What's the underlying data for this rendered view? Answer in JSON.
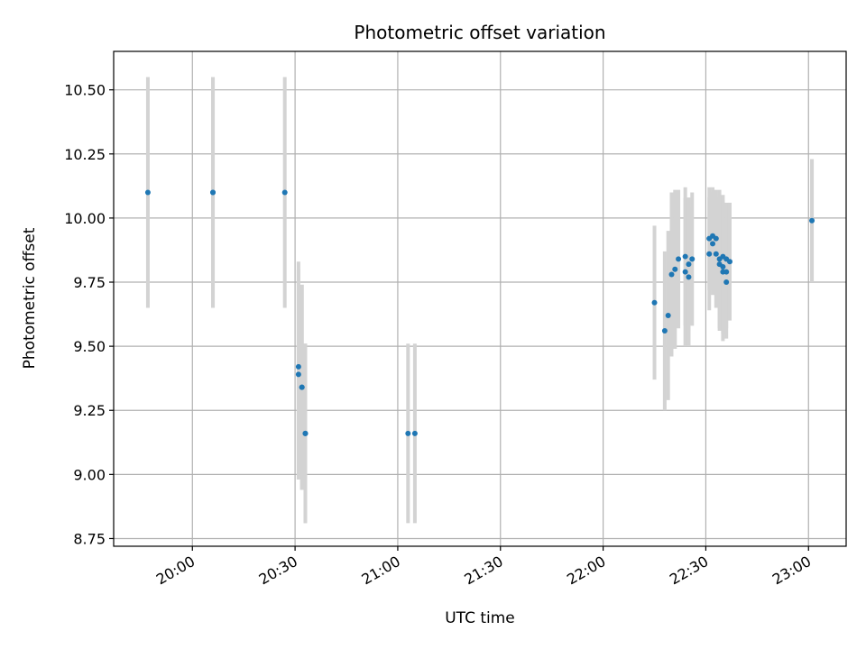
{
  "chart_data": {
    "type": "scatter",
    "title": "Photometric offset variation",
    "xlabel": "UTC time",
    "ylabel": "Photometric offset",
    "grid": true,
    "legend": "none",
    "x_unit": "minutes after 19:00 UTC",
    "xlim": [
      "19:37",
      "23:11"
    ],
    "ylim": [
      8.72,
      10.65
    ],
    "x_ticks": [
      "20:00",
      "20:30",
      "21:00",
      "21:30",
      "22:00",
      "22:30",
      "23:00"
    ],
    "y_ticks": [
      "8.75",
      "9.00",
      "9.25",
      "9.50",
      "9.75",
      "10.00",
      "10.25",
      "10.50"
    ],
    "colors": {
      "point": "#1f77b4",
      "errorbar": "#d3d3d3",
      "grid": "#b0b0b0"
    },
    "series": [
      {
        "points": [
          {
            "t": "19:47",
            "y": 10.1,
            "err": 0.45
          },
          {
            "t": "20:06",
            "y": 10.1,
            "err": 0.45
          },
          {
            "t": "20:06",
            "y": 10.1,
            "err": 0.45
          },
          {
            "t": "20:27",
            "y": 10.1,
            "err": 0.45
          },
          {
            "t": "20:31",
            "y": 9.42,
            "err": 0.41
          },
          {
            "t": "20:31",
            "y": 9.39,
            "err": 0.41
          },
          {
            "t": "20:32",
            "y": 9.34,
            "err": 0.4
          },
          {
            "t": "20:32",
            "y": 9.34,
            "err": 0.4
          },
          {
            "t": "20:33",
            "y": 9.16,
            "err": 0.35
          },
          {
            "t": "20:33",
            "y": 9.16,
            "err": 0.35
          },
          {
            "t": "21:03",
            "y": 9.16,
            "err": 0.35
          },
          {
            "t": "21:05",
            "y": 9.16,
            "err": 0.35
          },
          {
            "t": "22:15",
            "y": 9.67,
            "err": 0.3
          },
          {
            "t": "22:18",
            "y": 9.56,
            "err": 0.31
          },
          {
            "t": "22:19",
            "y": 9.62,
            "err": 0.33
          },
          {
            "t": "22:20",
            "y": 9.78,
            "err": 0.32
          },
          {
            "t": "22:21",
            "y": 9.8,
            "err": 0.31
          },
          {
            "t": "22:22",
            "y": 9.84,
            "err": 0.27
          },
          {
            "t": "22:24",
            "y": 9.85,
            "err": 0.27
          },
          {
            "t": "22:24",
            "y": 9.79,
            "err": 0.29
          },
          {
            "t": "22:25",
            "y": 9.77,
            "err": 0.27
          },
          {
            "t": "22:25",
            "y": 9.82,
            "err": 0.26
          },
          {
            "t": "22:26",
            "y": 9.84,
            "err": 0.26
          },
          {
            "t": "22:31",
            "y": 9.86,
            "err": 0.22
          },
          {
            "t": "22:31",
            "y": 9.92,
            "err": 0.2
          },
          {
            "t": "22:32",
            "y": 9.93,
            "err": 0.19
          },
          {
            "t": "22:32",
            "y": 9.9,
            "err": 0.2
          },
          {
            "t": "22:33",
            "y": 9.92,
            "err": 0.19
          },
          {
            "t": "22:33",
            "y": 9.86,
            "err": 0.21
          },
          {
            "t": "22:34",
            "y": 9.82,
            "err": 0.26
          },
          {
            "t": "22:34",
            "y": 9.84,
            "err": 0.27
          },
          {
            "t": "22:35",
            "y": 9.79,
            "err": 0.27
          },
          {
            "t": "22:35",
            "y": 9.81,
            "err": 0.26
          },
          {
            "t": "22:35",
            "y": 9.85,
            "err": 0.24
          },
          {
            "t": "22:36",
            "y": 9.75,
            "err": 0.22
          },
          {
            "t": "22:36",
            "y": 9.79,
            "err": 0.22
          },
          {
            "t": "22:36",
            "y": 9.84,
            "err": 0.22
          },
          {
            "t": "22:37",
            "y": 9.83,
            "err": 0.23
          },
          {
            "t": "23:01",
            "y": 9.99,
            "err": 0.24
          }
        ]
      }
    ]
  }
}
